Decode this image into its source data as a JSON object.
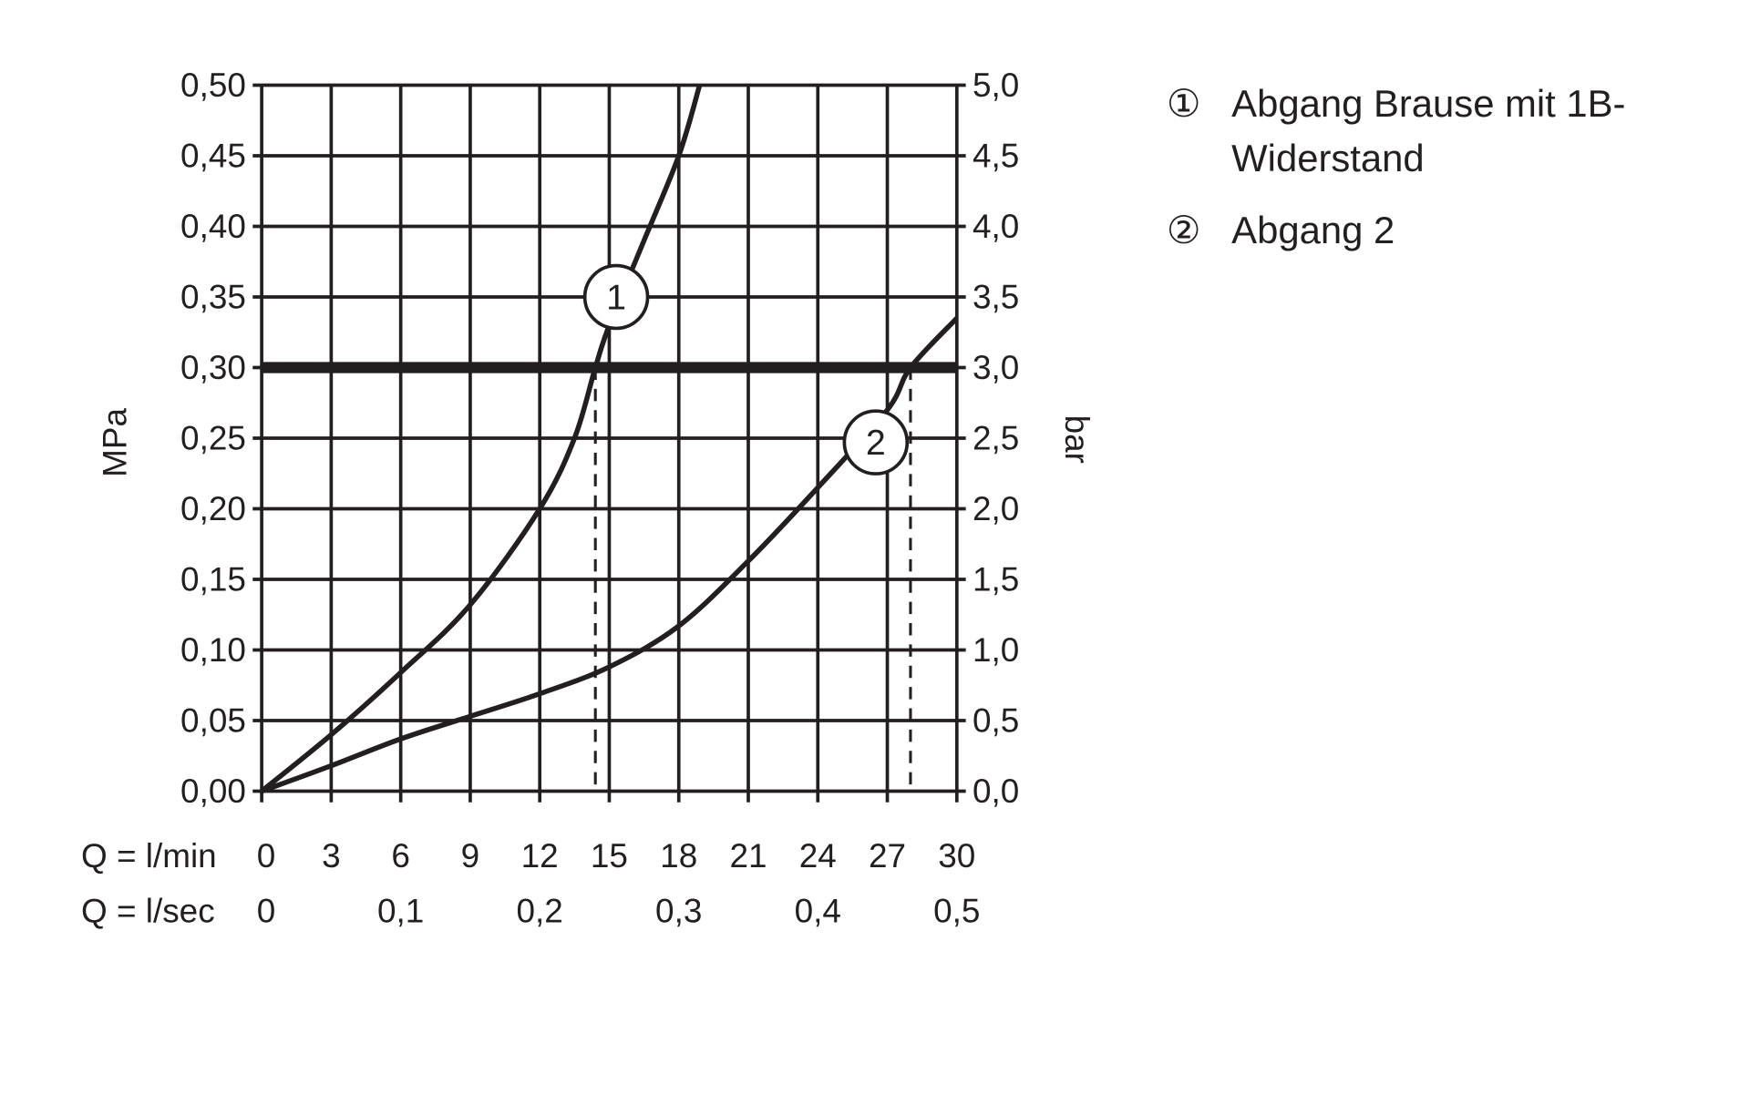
{
  "chart_data": {
    "type": "line",
    "xlabel_rows": [
      {
        "label": "Q = l/min",
        "ticks": [
          "0",
          "3",
          "6",
          "9",
          "12",
          "15",
          "18",
          "21",
          "24",
          "27",
          "30"
        ],
        "values": [
          0,
          3,
          6,
          9,
          12,
          15,
          18,
          21,
          24,
          27,
          30
        ]
      },
      {
        "label": "Q = l/sec",
        "ticks": [
          "0",
          "0,1",
          "0,2",
          "0,3",
          "0,4",
          "0,5"
        ],
        "values": [
          0,
          6,
          12,
          18,
          24,
          30
        ]
      }
    ],
    "ylabel_left": "MPa",
    "ylabel_right": "bar",
    "yticks_left": [
      "0,00",
      "0,05",
      "0,10",
      "0,15",
      "0,20",
      "0,25",
      "0,30",
      "0,35",
      "0,40",
      "0,45",
      "0,50"
    ],
    "yticks_right": [
      "0,0",
      "0,5",
      "1,0",
      "1,5",
      "2,0",
      "2,5",
      "3,0",
      "3,5",
      "4,0",
      "4,5",
      "5,0"
    ],
    "xlim": [
      0,
      30
    ],
    "ylim": [
      0,
      0.5
    ],
    "grid": true,
    "reference_line": {
      "y": 0.3
    },
    "dashed_markers": [
      14.4,
      28.0
    ],
    "series": [
      {
        "name": "1",
        "x": [
          0,
          3,
          6,
          9,
          12,
          13.5,
          14.4,
          15,
          16.5,
          18,
          18.9
        ],
        "y": [
          0,
          0.04,
          0.084,
          0.132,
          0.2,
          0.25,
          0.3,
          0.33,
          0.39,
          0.45,
          0.5
        ],
        "label_at": [
          15.3,
          0.35
        ]
      },
      {
        "name": "2",
        "x": [
          0,
          3,
          6,
          9,
          12,
          15,
          18,
          21,
          24,
          27,
          28,
          30
        ],
        "y": [
          0,
          0.018,
          0.037,
          0.053,
          0.069,
          0.088,
          0.117,
          0.163,
          0.215,
          0.27,
          0.3,
          0.335
        ],
        "label_at": [
          26.5,
          0.247
        ]
      }
    ],
    "legend": {
      "position": "right",
      "entries": [
        {
          "symbol": "①",
          "lines": [
            "Abgang Brause mit 1B-",
            "Widerstand"
          ]
        },
        {
          "symbol": "②",
          "lines": [
            "Abgang 2"
          ]
        }
      ]
    },
    "colors": {
      "ink": "#231f20",
      "background": "#ffffff"
    }
  }
}
